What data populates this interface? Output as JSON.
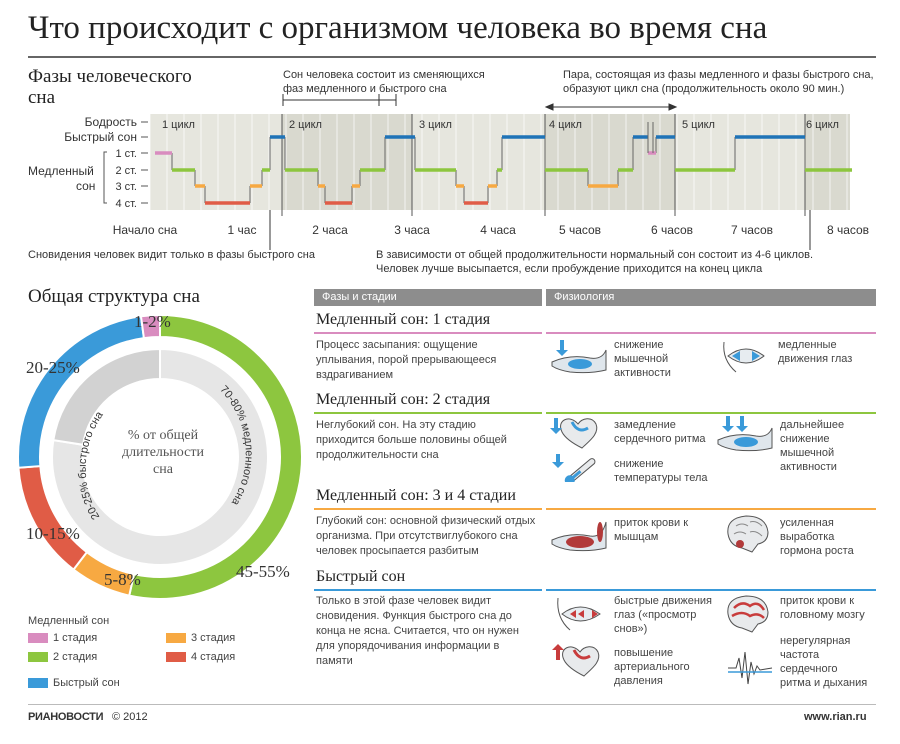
{
  "title": "Что происходит с организмом человека во время сна",
  "hypnogram": {
    "section_title_1": "Фазы человеческого",
    "section_title_2": "сна",
    "y_labels": [
      "Бодрость",
      "Быстрый сон",
      "1 ст.",
      "2 ст.",
      "3 ст.",
      "4 ст."
    ],
    "slow_label_1": "Медленный",
    "slow_label_2": "сон",
    "cycle_labels": [
      "1 цикл",
      "2 цикл",
      "3 цикл",
      "4 цикл",
      "5 цикл",
      "6 цикл"
    ],
    "x_labels": [
      "Начало сна",
      "1 час",
      "2 часа",
      "3 часа",
      "4 часа",
      "5 часов",
      "6 часов",
      "7 часов",
      "8 часов"
    ],
    "note_top_left_1": "Сон человека состоит из сменяющихся",
    "note_top_left_2": "фаз медленного и быстрого сна",
    "note_top_right_1": "Пара, состоящая из фазы медленного и фазы быстрого сна,",
    "note_top_right_2": "образуют цикл сна (продолжительность около 90 мин.)",
    "note_bottom_left": "Сновидения человек видит только в фазы быстрого сна",
    "note_bottom_right_1": "В зависимости от общей продолжительности нормальный сон состоит из 4-6 циклов.",
    "note_bottom_right_2": "Человек лучше высыпается, если пробуждение приходится на конец цикла"
  },
  "structure": {
    "section_title": "Общая структура сна",
    "center_label_1": "% от общей",
    "center_label_2": "длительности",
    "center_label_3": "сна",
    "inner_label_slow": "70-80% медленного сна",
    "inner_label_rem": "20-25% быстрого сна",
    "legend_title": "Медленный сон",
    "legend": [
      {
        "label": "1 стадия",
        "color": "#d98cbf"
      },
      {
        "label": "2 стадия",
        "color": "#8dc63f"
      },
      {
        "label": "3 стадия",
        "color": "#f7a942"
      },
      {
        "label": "4 стадия",
        "color": "#e05c46"
      },
      {
        "label": "Быстрый сон",
        "color": "#3a9ad9"
      }
    ]
  },
  "chart_data": {
    "type": "pie",
    "title": "Общая структура сна",
    "categories": [
      "Медленный сон: 1 стадия",
      "Медленный сон: 2 стадия",
      "Медленный сон: 3 стадия",
      "Медленный сон: 4 стадия",
      "Быстрый сон"
    ],
    "values": [
      2,
      50,
      6.5,
      12.5,
      22.5
    ],
    "labels": [
      "1-2%",
      "45-55%",
      "5-8%",
      "10-15%",
      "20-25%"
    ],
    "inner_ring": [
      {
        "label": "70-80% медленного сна",
        "value": 77.5
      },
      {
        "label": "20-25% быстрого сна",
        "value": 22.5
      }
    ],
    "colors": [
      "#d98cbf",
      "#8dc63f",
      "#f7a942",
      "#e05c46",
      "#3a9ad9"
    ]
  },
  "table": {
    "col_phases": "Фазы и стадии",
    "col_physiology": "Физиология",
    "stages": [
      {
        "title": "Медленный сон: 1 стадия",
        "color": "#d98cbf",
        "desc": [
          "Процесс засыпания: ощущение",
          "уплывания, порой прерывающееся",
          "вздрагиванием"
        ],
        "effects": [
          {
            "icon": "arm-muscle-icon",
            "lines": [
              "снижение",
              "мышечной",
              "активности"
            ]
          },
          {
            "icon": "eye-movement-icon",
            "lines": [
              "медленные",
              "движения глаз"
            ]
          }
        ]
      },
      {
        "title": "Медленный сон: 2 стадия",
        "color": "#8dc63f",
        "desc": [
          "Неглубокий сон. На эту стадию",
          "приходится больше половины общей",
          "продолжительности сна"
        ],
        "effects": [
          {
            "icon": "heart-icon",
            "lines": [
              "замедление",
              "сердечного ритма"
            ]
          },
          {
            "icon": "arm-muscle-icon",
            "lines": [
              "дальнейшее",
              "снижение",
              "мышечной",
              "активности"
            ]
          },
          {
            "icon": "thermometer-icon",
            "lines": [
              "снижение",
              "температуры тела"
            ]
          }
        ]
      },
      {
        "title": "Медленный сон: 3 и 4 стадии",
        "color": "#f7a942",
        "desc": [
          "Глубокий сон: основной физический отдых",
          "организма. При отсутствиглубокого сна",
          "человек просыпается разбитым"
        ],
        "effects": [
          {
            "icon": "arm-blood-icon",
            "lines": [
              "приток крови к",
              "мышцам"
            ]
          },
          {
            "icon": "brain-gland-icon",
            "lines": [
              "усиленная",
              "выработка",
              "гормона роста"
            ]
          }
        ]
      },
      {
        "title": "Быстрый сон",
        "color": "#3a9ad9",
        "desc": [
          "Только в этой фазе человек видит",
          "сновидения. Функция быстрого сна до",
          "конца не ясна. Считается, что он нужен",
          "для упорядочивания информации в",
          "памяти"
        ],
        "effects": [
          {
            "icon": "eye-fast-icon",
            "lines": [
              "быстрые движения",
              "глаз («просмотр",
              "снов»)"
            ]
          },
          {
            "icon": "brain-blood-icon",
            "lines": [
              "приток крови к",
              "головному мозгу"
            ]
          },
          {
            "icon": "heart-pressure-icon",
            "lines": [
              "повышение",
              "артериального",
              "давления"
            ]
          },
          {
            "icon": "pulse-icon",
            "lines": [
              "нерегулярная",
              "частота",
              "сердечного",
              "ритма и дыхания"
            ]
          }
        ]
      }
    ]
  },
  "footer": {
    "brand": "РИАНОВОСТИ",
    "copyright": "© 2012",
    "url": "www.rian.ru"
  }
}
